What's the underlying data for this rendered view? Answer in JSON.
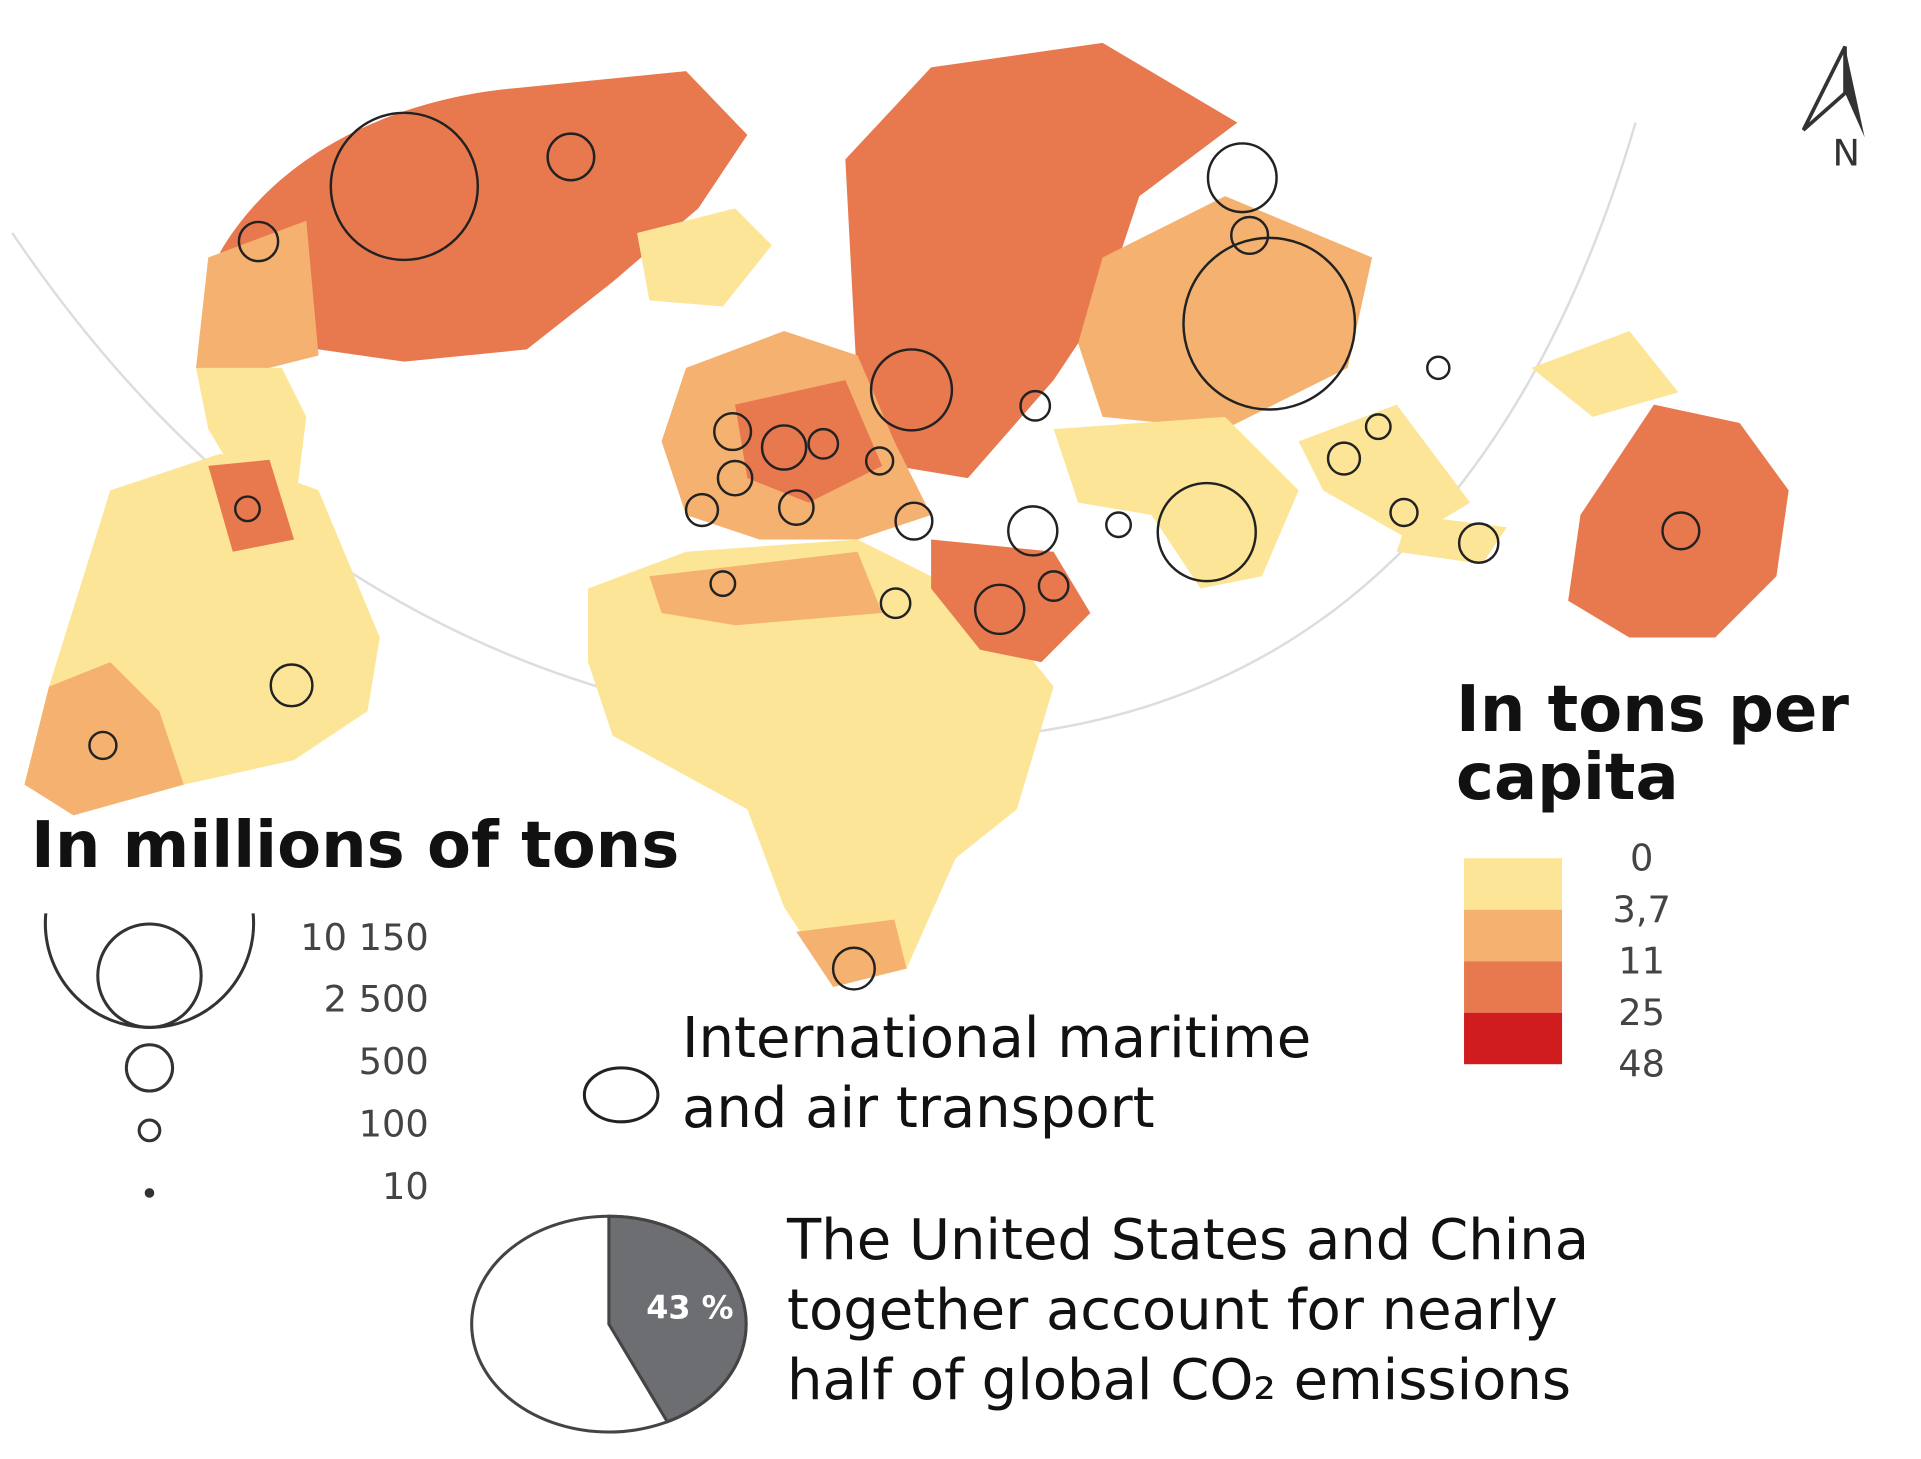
{
  "circle_legend": {
    "title": "In millions of tons",
    "sizes": [
      {
        "value": 10150,
        "label": "10 150"
      },
      {
        "value": 2500,
        "label": "2 500"
      },
      500,
      100,
      10
    ]
  },
  "transport_label": "International maritime and air transport",
  "color_legend": {
    "title": "In tons per capita",
    "breaks": [
      0,
      {
        "value": 3.7,
        "label": "3,7"
      },
      11,
      25,
      48
    ],
    "colors": [
      "#fde597",
      "#f5b16f",
      "#e8794f",
      "#d01c1f"
    ]
  },
  "pie": {
    "values": [
      43
    ],
    "value_labels": [
      "43 %"
    ],
    "color": "#6d6e71"
  },
  "note": "The United States and China together account for nearly half of global CO₂ emissions",
  "compass": "N"
}
